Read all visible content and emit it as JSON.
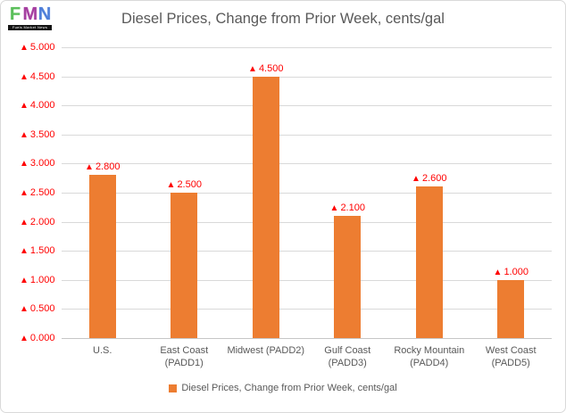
{
  "logo": {
    "letters": [
      "F",
      "M",
      "N"
    ],
    "tagline": "Fuels Market News"
  },
  "title": "Diesel Prices, Change from Prior Week, cents/gal",
  "legend": {
    "label": "Diesel Prices, Change from Prior Week, cents/gal"
  },
  "chart_data": {
    "type": "bar",
    "title": "Diesel Prices, Change from Prior Week, cents/gal",
    "categories": [
      "U.S.",
      "East Coast (PADD1)",
      "Midwest (PADD2)",
      "Gulf Coast (PADD3)",
      "Rocky Mountain (PADD4)",
      "West Coast (PADD5)"
    ],
    "category_lines": [
      [
        "U.S."
      ],
      [
        "East Coast",
        "(PADD1)"
      ],
      [
        "Midwest (PADD2)"
      ],
      [
        "Gulf Coast",
        "(PADD3)"
      ],
      [
        "Rocky Mountain",
        "(PADD4)"
      ],
      [
        "West Coast",
        "(PADD5)"
      ]
    ],
    "values": [
      2.8,
      2.5,
      4.5,
      2.1,
      2.6,
      1.0
    ],
    "value_labels": [
      "2.800",
      "2.500",
      "4.500",
      "2.100",
      "2.600",
      "1.000"
    ],
    "marker": "▲",
    "yticks": [
      "0.000",
      "0.500",
      "1.000",
      "1.500",
      "2.000",
      "2.500",
      "3.000",
      "3.500",
      "4.000",
      "4.500",
      "5.000"
    ],
    "ylim": [
      0,
      5
    ],
    "ytick_step": 0.5,
    "xlabel": "",
    "ylabel": "",
    "grid": true,
    "legend_position": "bottom",
    "bar_color": "#ED7D31",
    "label_color": "#FF0000",
    "gridline_color": "#D9D9D9"
  }
}
